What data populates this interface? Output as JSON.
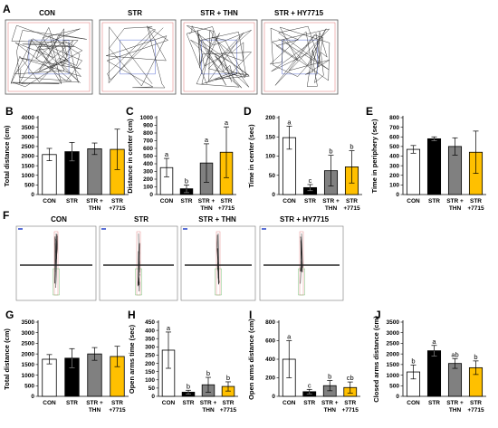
{
  "row1": {
    "letter": "A",
    "labels": [
      "CON",
      "STR",
      "STR + THN",
      "STR + HY7715"
    ]
  },
  "row3": {
    "letter": "F",
    "labels": [
      "CON",
      "STR",
      "STR + THN",
      "STR + HY7715"
    ]
  },
  "colors": {
    "bars": [
      "#ffffff",
      "#000000",
      "#808080",
      "#ffc000"
    ],
    "track_dark": "#222222",
    "track_blue": "#5a6fd6",
    "track_red": "#e07070",
    "track_green": "#5fb85f"
  },
  "chart_data": [
    {
      "id": "B",
      "letter": "B",
      "type": "bar",
      "ylabel": "Total distance (cm)",
      "categories": [
        [
          "CON"
        ],
        [
          "STR"
        ],
        [
          "STR +",
          "THN"
        ],
        [
          "STR",
          "+7715"
        ]
      ],
      "values": [
        2080,
        2230,
        2380,
        2350
      ],
      "errors": [
        320,
        480,
        300,
        1050
      ],
      "ylim": [
        0,
        4000
      ],
      "yticks": [
        0,
        500,
        1000,
        1500,
        2000,
        2500,
        3000,
        3500,
        4000
      ],
      "sig": []
    },
    {
      "id": "C",
      "letter": "C",
      "type": "bar",
      "ylabel": "Distance in center (cm)",
      "categories": [
        [
          "CON"
        ],
        [
          "STR"
        ],
        [
          "STR +",
          "THN"
        ],
        [
          "STR",
          "+7715"
        ]
      ],
      "values": [
        350,
        75,
        410,
        550
      ],
      "errors": [
        120,
        50,
        250,
        330
      ],
      "ylim": [
        0,
        1000
      ],
      "yticks": [
        0,
        100,
        200,
        300,
        400,
        500,
        600,
        700,
        800,
        900,
        1000
      ],
      "sig": [
        "a",
        "b",
        "a",
        "a"
      ]
    },
    {
      "id": "D",
      "letter": "D",
      "type": "bar",
      "ylabel": "Time in center (sec)",
      "categories": [
        [
          "CON"
        ],
        [
          "STR"
        ],
        [
          "STR +",
          "THN"
        ],
        [
          "STR",
          "+7715"
        ]
      ],
      "values": [
        148,
        18,
        62,
        72
      ],
      "errors": [
        30,
        8,
        40,
        42
      ],
      "ylim": [
        0,
        200
      ],
      "yticks": [
        0,
        50,
        100,
        150,
        200
      ],
      "sig": [
        "a",
        "c",
        "b",
        "b"
      ]
    },
    {
      "id": "E",
      "letter": "E",
      "type": "bar",
      "ylabel": "Time in periphery (sec)",
      "categories": [
        [
          "CON"
        ],
        [
          "STR"
        ],
        [
          "STR +",
          "THN"
        ],
        [
          "STR",
          "+7715"
        ]
      ],
      "values": [
        470,
        580,
        500,
        440
      ],
      "errors": [
        40,
        20,
        90,
        220
      ],
      "ylim": [
        0,
        800
      ],
      "yticks": [
        0,
        100,
        200,
        300,
        400,
        500,
        600,
        700,
        800
      ],
      "sig": []
    },
    {
      "id": "G",
      "letter": "G",
      "type": "bar",
      "ylabel": "Total distance (cm)",
      "categories": [
        [
          "CON"
        ],
        [
          "STR"
        ],
        [
          "STR +",
          "THN"
        ],
        [
          "STR",
          "+7715"
        ]
      ],
      "values": [
        1750,
        1800,
        2000,
        1880
      ],
      "errors": [
        220,
        450,
        300,
        480
      ],
      "ylim": [
        0,
        3500
      ],
      "yticks": [
        0,
        500,
        1000,
        1500,
        2000,
        2500,
        3000,
        3500
      ],
      "sig": []
    },
    {
      "id": "H",
      "letter": "H",
      "type": "bar",
      "ylabel": "Open arms time (sec)",
      "categories": [
        [
          "CON"
        ],
        [
          "STR"
        ],
        [
          "STR +",
          "THN"
        ],
        [
          "STR",
          "+7715"
        ]
      ],
      "values": [
        280,
        25,
        70,
        60
      ],
      "errors": [
        110,
        12,
        45,
        28
      ],
      "ylim": [
        0,
        450
      ],
      "yticks": [
        0,
        50,
        100,
        150,
        200,
        250,
        300,
        350,
        400,
        450
      ],
      "sig": [
        "a",
        "b",
        "b",
        "b"
      ]
    },
    {
      "id": "I",
      "letter": "I",
      "type": "bar",
      "ylabel": "Open arms distance (cm)",
      "categories": [
        [
          "CON"
        ],
        [
          "STR"
        ],
        [
          "STR +",
          "THN"
        ],
        [
          "STR",
          "+7715"
        ]
      ],
      "values": [
        400,
        50,
        115,
        95
      ],
      "errors": [
        200,
        25,
        55,
        60
      ],
      "ylim": [
        0,
        800
      ],
      "yticks": [
        0,
        200,
        400,
        600,
        800
      ],
      "sig": [
        "a",
        "c",
        "b",
        "cb"
      ]
    },
    {
      "id": "J",
      "letter": "J",
      "type": "bar",
      "ylabel": "Closed arms distance (cm)",
      "categories": [
        [
          "CON"
        ],
        [
          "STR"
        ],
        [
          "STR +",
          "THN"
        ],
        [
          "STR",
          "+7715"
        ]
      ],
      "values": [
        1150,
        2150,
        1550,
        1350
      ],
      "errors": [
        330,
        250,
        230,
        320
      ],
      "ylim": [
        0,
        3500
      ],
      "yticks": [
        0,
        500,
        1000,
        1500,
        2000,
        2500,
        3000,
        3500
      ],
      "sig": [
        "b",
        "a",
        "ab",
        "b"
      ]
    }
  ]
}
